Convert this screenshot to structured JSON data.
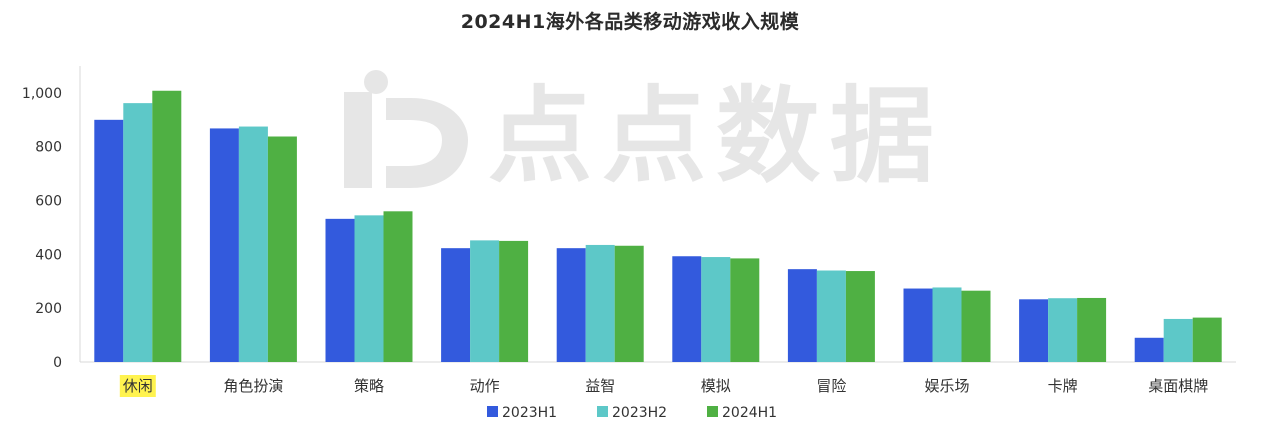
{
  "watermark": {
    "text": "点点数据",
    "color": "#e6e6e6"
  },
  "colors": {
    "series": [
      "#335add",
      "#5dc8c8",
      "#4fb043"
    ],
    "highlight": "#fff34f",
    "axis": "#d9d9d9"
  },
  "chart_data": {
    "type": "bar",
    "title": "2024H1海外各品类移动游戏收入规模",
    "xlabel": "",
    "ylabel": "",
    "categories": [
      "休闲",
      "角色扮演",
      "策略",
      "动作",
      "益智",
      "模拟",
      "冒险",
      "娱乐场",
      "卡牌",
      "桌面棋牌"
    ],
    "highlighted_category": "休闲",
    "series": [
      {
        "name": "2023H1",
        "values": [
          900,
          868,
          532,
          423,
          423,
          393,
          345,
          273,
          233,
          90
        ]
      },
      {
        "name": "2023H2",
        "values": [
          962,
          875,
          545,
          452,
          435,
          390,
          340,
          277,
          237,
          160
        ]
      },
      {
        "name": "2024H1",
        "values": [
          1008,
          838,
          560,
          450,
          432,
          385,
          338,
          265,
          238,
          165
        ]
      }
    ],
    "ylim": [
      0,
      1100
    ],
    "yticks": [
      0,
      200,
      400,
      600,
      800,
      1000
    ],
    "ytick_labels": [
      "0",
      "200",
      "400",
      "600",
      "800",
      "1,000"
    ],
    "grid": false,
    "legend_position": "bottom"
  }
}
